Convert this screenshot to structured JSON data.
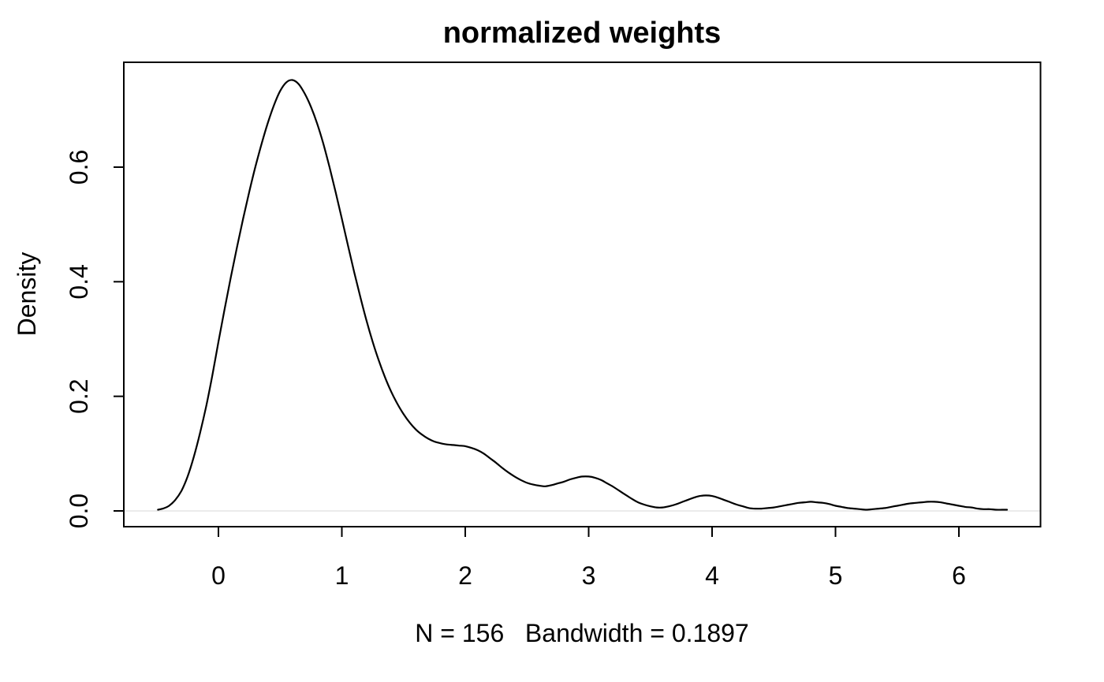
{
  "figure": {
    "background_color": "#ffffff",
    "line_color": "#000000",
    "baseline_color": "#ebebeb"
  },
  "chart_data": {
    "type": "line",
    "title": "normalized weights",
    "ylabel": "Density",
    "xlabel": "N = 156   Bandwidth = 0.1897",
    "n_label": "N = 156",
    "bandwidth_label": "Bandwidth = 0.1897",
    "n": 156,
    "bandwidth": 0.1897,
    "x_ticks": [
      0,
      1,
      2,
      3,
      4,
      5,
      6
    ],
    "y_ticks": [
      "0.0",
      "0.2",
      "0.4",
      "0.6"
    ],
    "xlim": [
      -0.77,
      6.66
    ],
    "ylim": [
      -0.028,
      0.783
    ],
    "grid": false,
    "legend_position": "none",
    "series": [
      {
        "name": "density",
        "color": "#000000",
        "points": [
          [
            -0.49,
            0.002
          ],
          [
            -0.45,
            0.004
          ],
          [
            -0.4,
            0.009
          ],
          [
            -0.35,
            0.019
          ],
          [
            -0.3,
            0.035
          ],
          [
            -0.25,
            0.06
          ],
          [
            -0.2,
            0.094
          ],
          [
            -0.15,
            0.135
          ],
          [
            -0.1,
            0.182
          ],
          [
            -0.05,
            0.236
          ],
          [
            0.0,
            0.295
          ],
          [
            0.05,
            0.352
          ],
          [
            0.1,
            0.407
          ],
          [
            0.15,
            0.46
          ],
          [
            0.2,
            0.51
          ],
          [
            0.25,
            0.557
          ],
          [
            0.3,
            0.601
          ],
          [
            0.35,
            0.641
          ],
          [
            0.4,
            0.677
          ],
          [
            0.45,
            0.708
          ],
          [
            0.5,
            0.733
          ],
          [
            0.55,
            0.748
          ],
          [
            0.6,
            0.752
          ],
          [
            0.65,
            0.745
          ],
          [
            0.7,
            0.728
          ],
          [
            0.75,
            0.705
          ],
          [
            0.8,
            0.676
          ],
          [
            0.85,
            0.641
          ],
          [
            0.9,
            0.6
          ],
          [
            0.95,
            0.556
          ],
          [
            1.0,
            0.51
          ],
          [
            1.05,
            0.463
          ],
          [
            1.1,
            0.417
          ],
          [
            1.15,
            0.373
          ],
          [
            1.2,
            0.332
          ],
          [
            1.25,
            0.295
          ],
          [
            1.3,
            0.262
          ],
          [
            1.35,
            0.233
          ],
          [
            1.4,
            0.208
          ],
          [
            1.45,
            0.187
          ],
          [
            1.5,
            0.169
          ],
          [
            1.55,
            0.154
          ],
          [
            1.6,
            0.142
          ],
          [
            1.65,
            0.133
          ],
          [
            1.7,
            0.126
          ],
          [
            1.75,
            0.121
          ],
          [
            1.8,
            0.118
          ],
          [
            1.85,
            0.116
          ],
          [
            1.9,
            0.115
          ],
          [
            1.95,
            0.114
          ],
          [
            2.0,
            0.113
          ],
          [
            2.05,
            0.11
          ],
          [
            2.1,
            0.106
          ],
          [
            2.15,
            0.1
          ],
          [
            2.2,
            0.092
          ],
          [
            2.25,
            0.084
          ],
          [
            2.3,
            0.075
          ],
          [
            2.35,
            0.067
          ],
          [
            2.4,
            0.06
          ],
          [
            2.45,
            0.054
          ],
          [
            2.5,
            0.049
          ],
          [
            2.55,
            0.046
          ],
          [
            2.6,
            0.044
          ],
          [
            2.65,
            0.043
          ],
          [
            2.7,
            0.045
          ],
          [
            2.75,
            0.048
          ],
          [
            2.8,
            0.051
          ],
          [
            2.85,
            0.055
          ],
          [
            2.9,
            0.058
          ],
          [
            2.95,
            0.06
          ],
          [
            3.0,
            0.06
          ],
          [
            3.05,
            0.058
          ],
          [
            3.1,
            0.054
          ],
          [
            3.15,
            0.048
          ],
          [
            3.2,
            0.042
          ],
          [
            3.25,
            0.035
          ],
          [
            3.3,
            0.028
          ],
          [
            3.35,
            0.021
          ],
          [
            3.4,
            0.015
          ],
          [
            3.45,
            0.011
          ],
          [
            3.5,
            0.008
          ],
          [
            3.55,
            0.006
          ],
          [
            3.6,
            0.006
          ],
          [
            3.65,
            0.008
          ],
          [
            3.7,
            0.011
          ],
          [
            3.75,
            0.015
          ],
          [
            3.8,
            0.019
          ],
          [
            3.85,
            0.023
          ],
          [
            3.9,
            0.026
          ],
          [
            3.95,
            0.027
          ],
          [
            4.0,
            0.026
          ],
          [
            4.05,
            0.023
          ],
          [
            4.1,
            0.019
          ],
          [
            4.15,
            0.015
          ],
          [
            4.2,
            0.011
          ],
          [
            4.25,
            0.008
          ],
          [
            4.3,
            0.005
          ],
          [
            4.35,
            0.004
          ],
          [
            4.4,
            0.004
          ],
          [
            4.45,
            0.005
          ],
          [
            4.5,
            0.006
          ],
          [
            4.55,
            0.008
          ],
          [
            4.6,
            0.01
          ],
          [
            4.65,
            0.012
          ],
          [
            4.7,
            0.014
          ],
          [
            4.75,
            0.015
          ],
          [
            4.8,
            0.016
          ],
          [
            4.85,
            0.015
          ],
          [
            4.9,
            0.014
          ],
          [
            4.95,
            0.012
          ],
          [
            5.0,
            0.009
          ],
          [
            5.05,
            0.007
          ],
          [
            5.1,
            0.005
          ],
          [
            5.15,
            0.004
          ],
          [
            5.2,
            0.003
          ],
          [
            5.25,
            0.002
          ],
          [
            5.3,
            0.003
          ],
          [
            5.35,
            0.004
          ],
          [
            5.4,
            0.005
          ],
          [
            5.45,
            0.007
          ],
          [
            5.5,
            0.009
          ],
          [
            5.55,
            0.011
          ],
          [
            5.6,
            0.013
          ],
          [
            5.65,
            0.014
          ],
          [
            5.7,
            0.015
          ],
          [
            5.75,
            0.016
          ],
          [
            5.8,
            0.016
          ],
          [
            5.85,
            0.015
          ],
          [
            5.9,
            0.013
          ],
          [
            5.95,
            0.011
          ],
          [
            6.0,
            0.009
          ],
          [
            6.05,
            0.007
          ],
          [
            6.1,
            0.006
          ],
          [
            6.15,
            0.004
          ],
          [
            6.2,
            0.003
          ],
          [
            6.25,
            0.003
          ],
          [
            6.3,
            0.002
          ],
          [
            6.35,
            0.002
          ],
          [
            6.39,
            0.002
          ]
        ]
      }
    ]
  }
}
